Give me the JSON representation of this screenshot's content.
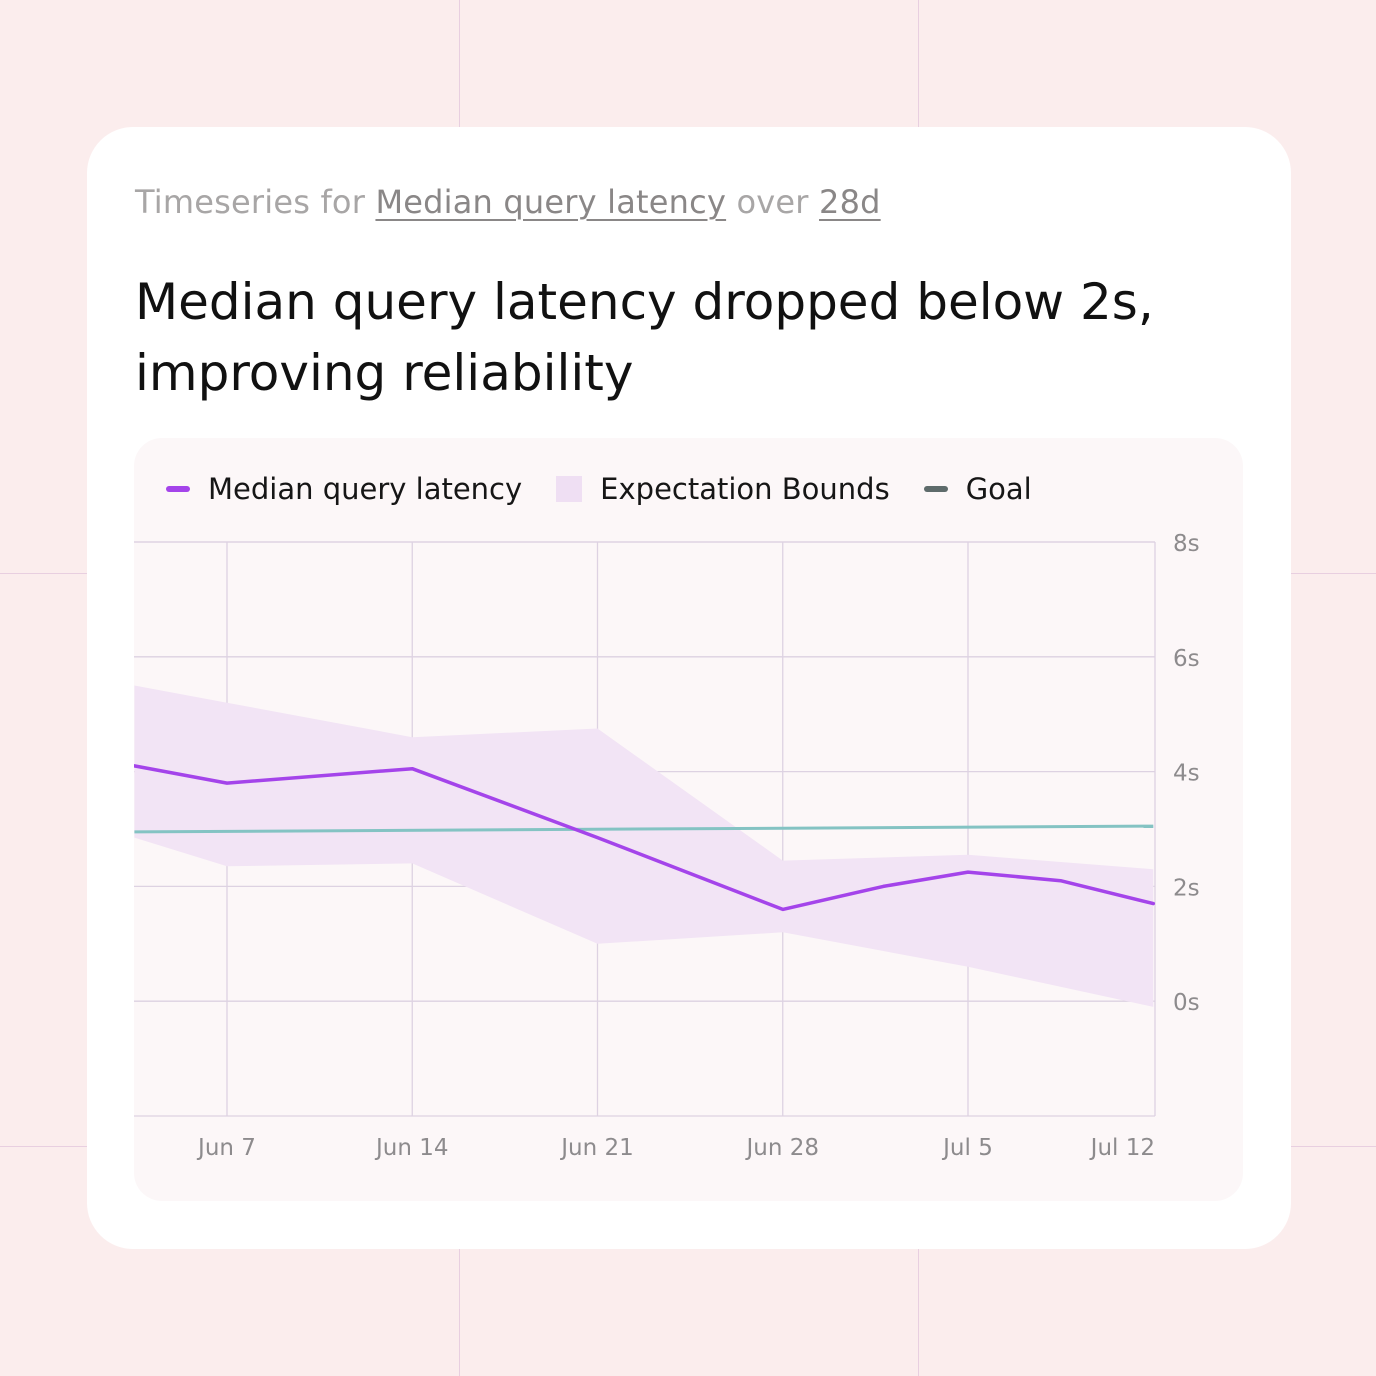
{
  "header": {
    "subtitle_prefix": "Timeseries for",
    "metric_link": "Median query latency",
    "subtitle_mid": "over",
    "period_link": "28d",
    "headline": "Median query latency dropped below 2s, improving reliability"
  },
  "legend": [
    {
      "label": "Median query latency",
      "color": "#a444ea",
      "kind": "line"
    },
    {
      "label": "Expectation Bounds",
      "color": "#efdff3",
      "kind": "box"
    },
    {
      "label": "Goal",
      "color": "#5e6b6b",
      "kind": "line"
    }
  ],
  "colors": {
    "series": "#a444ea",
    "band": "#f2e4f5",
    "goal": "#84c3c3",
    "grid": "#ddd2e2"
  },
  "chart_data": {
    "type": "line",
    "x_ticks": [
      "Jun 7",
      "Jun 14",
      "Jun 21",
      "Jun 28",
      "Jul 5",
      "Jul 12"
    ],
    "y_ticks": [
      "8s",
      "6s",
      "4s",
      "2s",
      "0s"
    ],
    "ylim": [
      -2,
      8
    ],
    "y_unit": "s",
    "series": [
      {
        "name": "Median query latency",
        "points": [
          {
            "x": "Jun 3.5",
            "y": 4.1
          },
          {
            "x": "Jun 7",
            "y": 3.8
          },
          {
            "x": "Jun 14",
            "y": 4.05
          },
          {
            "x": "Jun 21",
            "y": 2.85
          },
          {
            "x": "Jun 28",
            "y": 1.6
          },
          {
            "x": "Jul 1.8",
            "y": 2.0
          },
          {
            "x": "Jul 5",
            "y": 2.25
          },
          {
            "x": "Jul 8.5",
            "y": 2.1
          },
          {
            "x": "Jul 12",
            "y": 1.7
          }
        ]
      },
      {
        "name": "Expectation Bounds",
        "points": [
          {
            "x": "Jun 3.5",
            "lower": 2.85,
            "upper": 5.5
          },
          {
            "x": "Jun 7",
            "lower": 2.35,
            "upper": 5.2
          },
          {
            "x": "Jun 14",
            "lower": 2.4,
            "upper": 4.6
          },
          {
            "x": "Jun 21",
            "lower": 1.0,
            "upper": 4.75
          },
          {
            "x": "Jun 28",
            "lower": 1.2,
            "upper": 2.45
          },
          {
            "x": "Jul 5",
            "lower": 0.6,
            "upper": 2.55
          },
          {
            "x": "Jul 12",
            "lower": -0.1,
            "upper": 2.3
          }
        ]
      },
      {
        "name": "Goal",
        "points": [
          {
            "x": "Jun 3.5",
            "y": 2.95
          },
          {
            "x": "Jul 12",
            "y": 3.05
          }
        ]
      }
    ]
  }
}
